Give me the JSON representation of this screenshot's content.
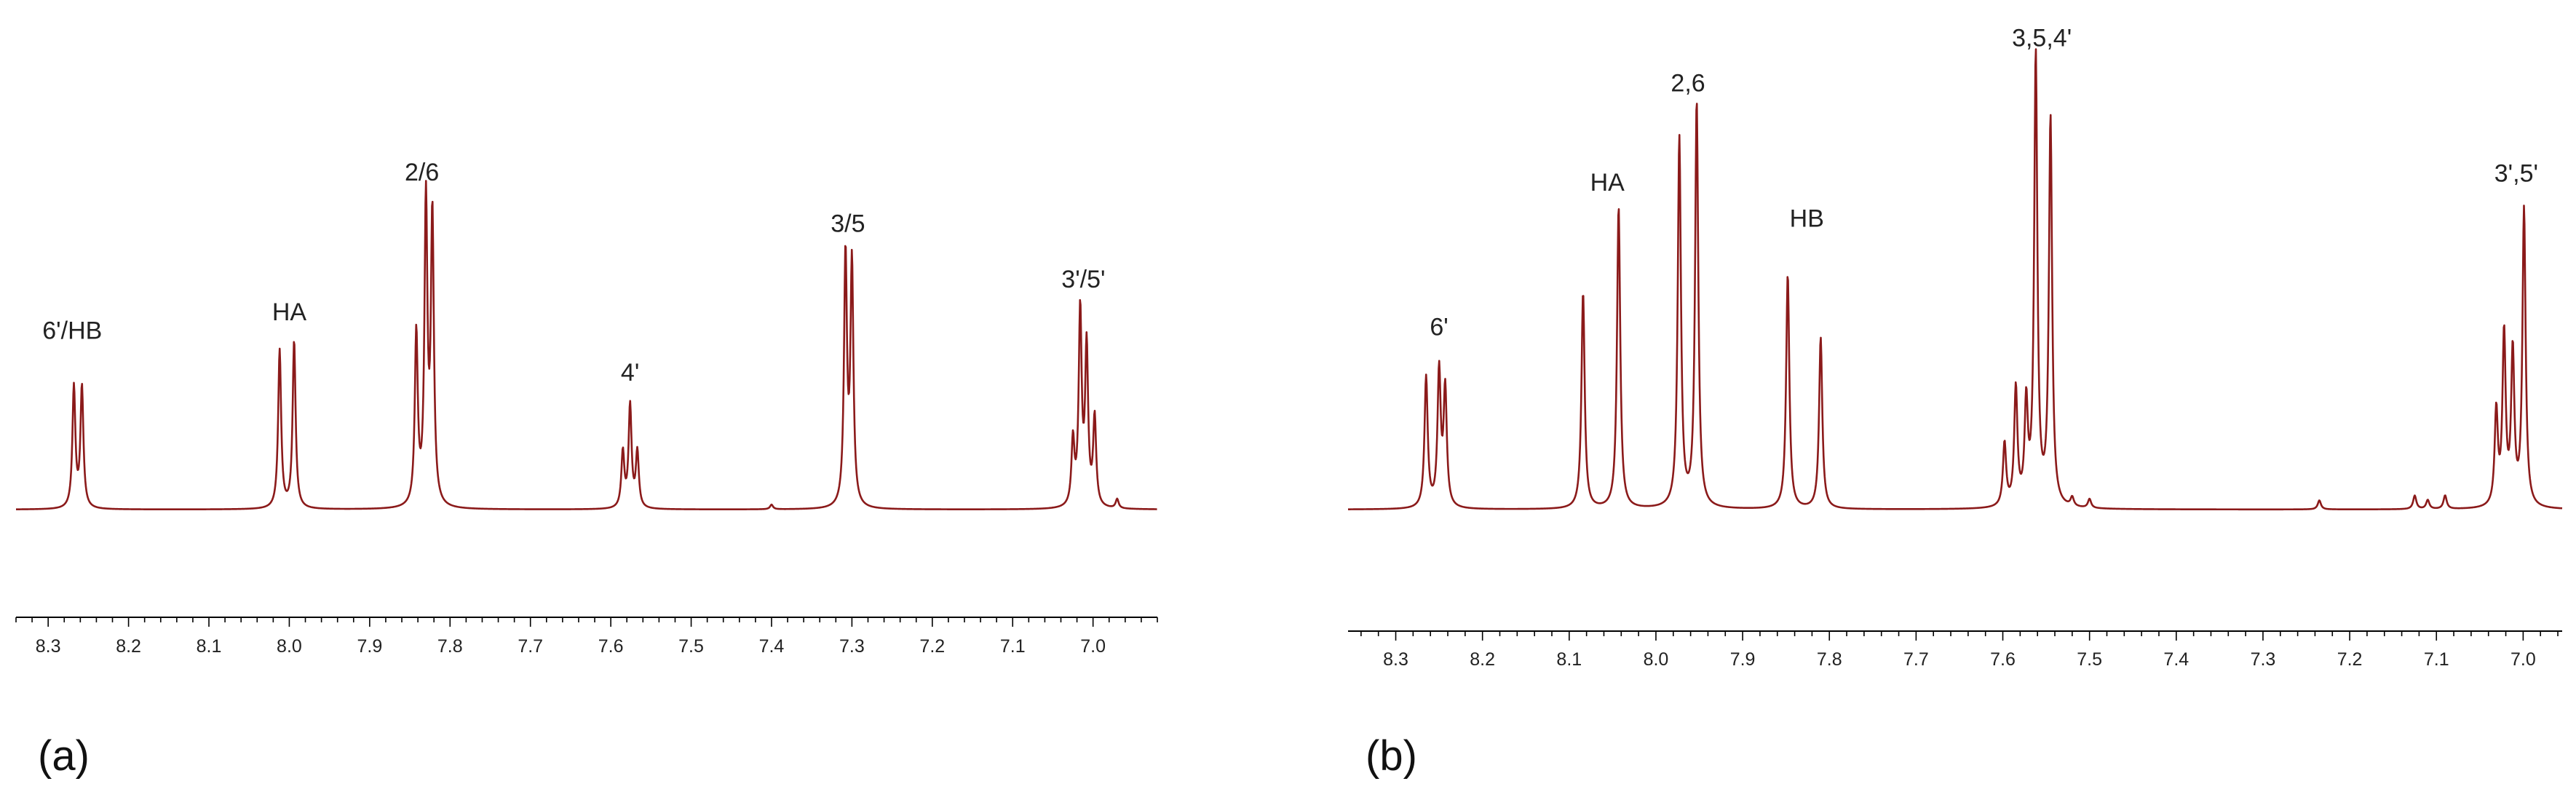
{
  "colors": {
    "spectrum": "#8b1a1a",
    "axis": "#000000",
    "text": "#222222"
  },
  "chart_data": [
    {
      "type": "line",
      "panel_label": "(a)",
      "xlabel": "",
      "ylabel": "",
      "x_reversed": true,
      "xlim": [
        8.34,
        6.92
      ],
      "grid": false,
      "x_ticks": [
        8.3,
        8.2,
        8.1,
        8.0,
        7.9,
        7.8,
        7.7,
        7.6,
        7.5,
        7.4,
        7.3,
        7.2,
        7.1,
        7.0
      ],
      "tick_labels": [
        "8.3",
        "8.2",
        "8.1",
        "8.0",
        "7.9",
        "7.8",
        "7.7",
        "7.6",
        "7.5",
        "7.4",
        "7.3",
        "7.2",
        "7.1",
        "7.0"
      ],
      "peaks": [
        {
          "ppm": 8.268,
          "height": 0.26
        },
        {
          "ppm": 8.258,
          "height": 0.26
        },
        {
          "ppm": 8.012,
          "height": 0.34
        },
        {
          "ppm": 7.994,
          "height": 0.36
        },
        {
          "ppm": 7.842,
          "height": 0.37
        },
        {
          "ppm": 7.83,
          "height": 0.65
        },
        {
          "ppm": 7.822,
          "height": 0.62
        },
        {
          "ppm": 7.585,
          "height": 0.12
        },
        {
          "ppm": 7.576,
          "height": 0.22
        },
        {
          "ppm": 7.567,
          "height": 0.12
        },
        {
          "ppm": 7.308,
          "height": 0.54
        },
        {
          "ppm": 7.3,
          "height": 0.52
        },
        {
          "ppm": 7.025,
          "height": 0.14
        },
        {
          "ppm": 7.016,
          "height": 0.42
        },
        {
          "ppm": 7.008,
          "height": 0.34
        },
        {
          "ppm": 6.998,
          "height": 0.19
        },
        {
          "ppm": 6.97,
          "height": 0.02
        },
        {
          "ppm": 7.4,
          "height": 0.01
        }
      ],
      "annotations": [
        {
          "text": "6'/HB",
          "ppm": 8.27,
          "height": 0.36
        },
        {
          "text": "HA",
          "ppm": 8.0,
          "height": 0.4
        },
        {
          "text": "2/6",
          "ppm": 7.835,
          "height": 0.7
        },
        {
          "text": "4'",
          "ppm": 7.576,
          "height": 0.27
        },
        {
          "text": "3/5",
          "ppm": 7.305,
          "height": 0.59
        },
        {
          "text": "3'/5'",
          "ppm": 7.012,
          "height": 0.47
        }
      ]
    },
    {
      "type": "line",
      "panel_label": "(b)",
      "xlabel": "",
      "ylabel": "",
      "x_reversed": true,
      "xlim": [
        8.355,
        6.955
      ],
      "grid": false,
      "x_ticks": [
        8.3,
        8.2,
        8.1,
        8.0,
        7.9,
        7.8,
        7.7,
        7.6,
        7.5,
        7.4,
        7.3,
        7.2,
        7.1,
        7.0
      ],
      "tick_labels": [
        "8.3",
        "8.2",
        "8.1",
        "8.0",
        "7.9",
        "7.8",
        "7.7",
        "7.6",
        "7.5",
        "7.4",
        "7.3",
        "7.2",
        "7.1",
        "7.0"
      ],
      "peaks": [
        {
          "ppm": 8.265,
          "height": 0.29
        },
        {
          "ppm": 8.25,
          "height": 0.3
        },
        {
          "ppm": 8.243,
          "height": 0.26
        },
        {
          "ppm": 8.084,
          "height": 0.48
        },
        {
          "ppm": 8.043,
          "height": 0.67
        },
        {
          "ppm": 7.973,
          "height": 0.82
        },
        {
          "ppm": 7.953,
          "height": 0.9
        },
        {
          "ppm": 7.848,
          "height": 0.52
        },
        {
          "ppm": 7.81,
          "height": 0.38
        },
        {
          "ppm": 7.598,
          "height": 0.14
        },
        {
          "ppm": 7.585,
          "height": 0.26
        },
        {
          "ppm": 7.573,
          "height": 0.22
        },
        {
          "ppm": 7.562,
          "height": 1.0
        },
        {
          "ppm": 7.545,
          "height": 0.86
        },
        {
          "ppm": 7.52,
          "height": 0.02
        },
        {
          "ppm": 7.5,
          "height": 0.02
        },
        {
          "ppm": 7.235,
          "height": 0.02
        },
        {
          "ppm": 7.125,
          "height": 0.03
        },
        {
          "ppm": 7.11,
          "height": 0.02
        },
        {
          "ppm": 7.09,
          "height": 0.03
        },
        {
          "ppm": 7.031,
          "height": 0.21
        },
        {
          "ppm": 7.022,
          "height": 0.38
        },
        {
          "ppm": 7.012,
          "height": 0.34
        },
        {
          "ppm": 6.999,
          "height": 0.66
        }
      ],
      "annotations": [
        {
          "text": "6'",
          "ppm": 8.25,
          "height": 0.38
        },
        {
          "text": "HA",
          "ppm": 8.056,
          "height": 0.7
        },
        {
          "text": "2,6",
          "ppm": 7.963,
          "height": 0.92
        },
        {
          "text": "HB",
          "ppm": 7.826,
          "height": 0.62
        },
        {
          "text": "3,5,4'",
          "ppm": 7.555,
          "height": 1.02
        },
        {
          "text": "3',5'",
          "ppm": 7.008,
          "height": 0.72
        }
      ]
    }
  ]
}
